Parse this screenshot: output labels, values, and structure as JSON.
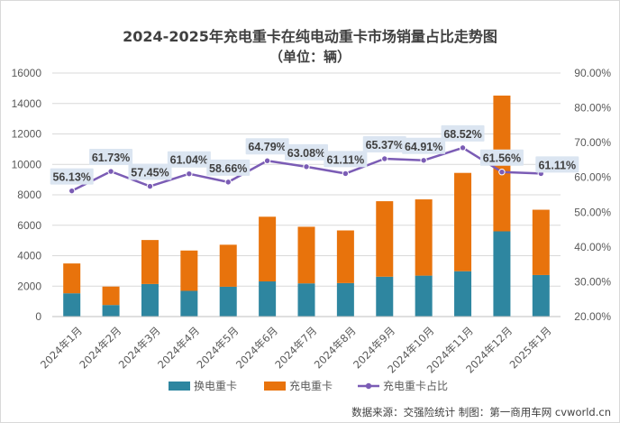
{
  "chart_data": {
    "type": "bar",
    "stacked": true,
    "title": "2024-2025年充电重卡在纯电动重卡市场销量占比走势图",
    "subtitle": "（单位：辆）",
    "categories": [
      "2024年1月",
      "2024年2月",
      "2024年3月",
      "2024年4月",
      "2024年5月",
      "2024年6月",
      "2024年7月",
      "2024年8月",
      "2024年9月",
      "2024年10月",
      "2024年11月",
      "2024年12月",
      "2025年1月"
    ],
    "series": [
      {
        "name": "换电重卡",
        "type": "bar",
        "axis": "left",
        "color": "#2E86A0",
        "values": [
          1530,
          760,
          2140,
          1690,
          1960,
          2310,
          2180,
          2200,
          2620,
          2690,
          2980,
          5600,
          2730
        ]
      },
      {
        "name": "充电重卡",
        "type": "bar",
        "axis": "left",
        "color": "#E8730C",
        "values": [
          1960,
          1210,
          2890,
          2650,
          2760,
          4250,
          3720,
          3460,
          4960,
          5010,
          6460,
          8920,
          4290
        ]
      },
      {
        "name": "充电重卡占比",
        "type": "line",
        "axis": "right",
        "color": "#7B5CB5",
        "values": [
          56.13,
          61.73,
          57.45,
          61.04,
          58.66,
          64.79,
          63.08,
          61.11,
          65.37,
          64.91,
          68.52,
          61.56,
          61.11
        ],
        "labels": [
          "56.13%",
          "61.73%",
          "57.45%",
          "61.04%",
          "58.66%",
          "64.79%",
          "63.08%",
          "61.11%",
          "65.37%",
          "64.91%",
          "68.52%",
          "61.56%",
          "61.11%"
        ]
      }
    ],
    "ylim_left": [
      0,
      16000
    ],
    "yticks_left": [
      0,
      2000,
      4000,
      6000,
      8000,
      10000,
      12000,
      14000,
      16000
    ],
    "ytick_labels_left": [
      "0",
      "2000",
      "4000",
      "6000",
      "8000",
      "10000",
      "12000",
      "14000",
      "16000"
    ],
    "ylim_right": [
      20,
      90
    ],
    "yticks_right": [
      20,
      30,
      40,
      50,
      60,
      70,
      80,
      90
    ],
    "ytick_labels_right": [
      "20.00%",
      "30.00%",
      "40.00%",
      "50.00%",
      "60.00%",
      "70.00%",
      "80.00%",
      "90.00%"
    ],
    "grid": true,
    "legend_position": "bottom",
    "source": "数据来源：交强险统计  制图：第一商用车网 cvworld.cn"
  }
}
